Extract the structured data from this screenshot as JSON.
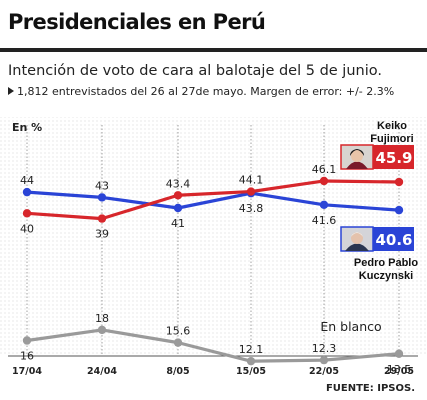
{
  "header": {
    "title": "Presidenciales en Perú",
    "subtitle": "Intención de voto de cara al balotaje del 5 de junio.",
    "note": "1,812 entrevistados del 26 al 27de mayo. Margen de error: +/- 2.3%",
    "source": "FUENTE: IPSOS."
  },
  "chart_data": {
    "type": "line",
    "y_unit_label": "En %",
    "categories": [
      "17/04",
      "24/04",
      "8/05",
      "15/05",
      "22/05",
      "29/05"
    ],
    "series": [
      {
        "name": "Keiko Fujimori",
        "color": "#d7262b",
        "values": [
          40,
          39,
          43.4,
          44.1,
          46.1,
          45.9
        ],
        "value_labels": [
          "40",
          "39",
          "43.4",
          "44.1",
          "46.1",
          ""
        ],
        "label_side": [
          "below",
          "below",
          "above",
          "above",
          "above",
          "none"
        ],
        "callout": "45.9"
      },
      {
        "name": "Pedro Pablo Kuczynski",
        "color": "#2a44d6",
        "values": [
          44,
          43,
          41,
          43.8,
          41.6,
          40.6
        ],
        "value_labels": [
          "44",
          "43",
          "41",
          "43.8",
          "41.6",
          ""
        ],
        "label_side": [
          "above",
          "above",
          "below",
          "below",
          "below",
          "none"
        ],
        "callout": "40.6"
      },
      {
        "name": "En blanco",
        "color": "#9a9a9a",
        "values": [
          16,
          18,
          15.6,
          12.1,
          12.3,
          13.5
        ],
        "value_labels": [
          "16",
          "18",
          "15.6",
          "12.1",
          "12.3",
          "13.5"
        ],
        "label_side": [
          "below",
          "above",
          "above",
          "above",
          "above",
          "below"
        ],
        "callout": ""
      }
    ],
    "legend": {
      "keiko": [
        "Keiko",
        "Fujimori"
      ],
      "ppk": [
        "Pedro Pablo",
        "Kuczynski"
      ],
      "blank": "En blanco"
    },
    "grid": true
  }
}
